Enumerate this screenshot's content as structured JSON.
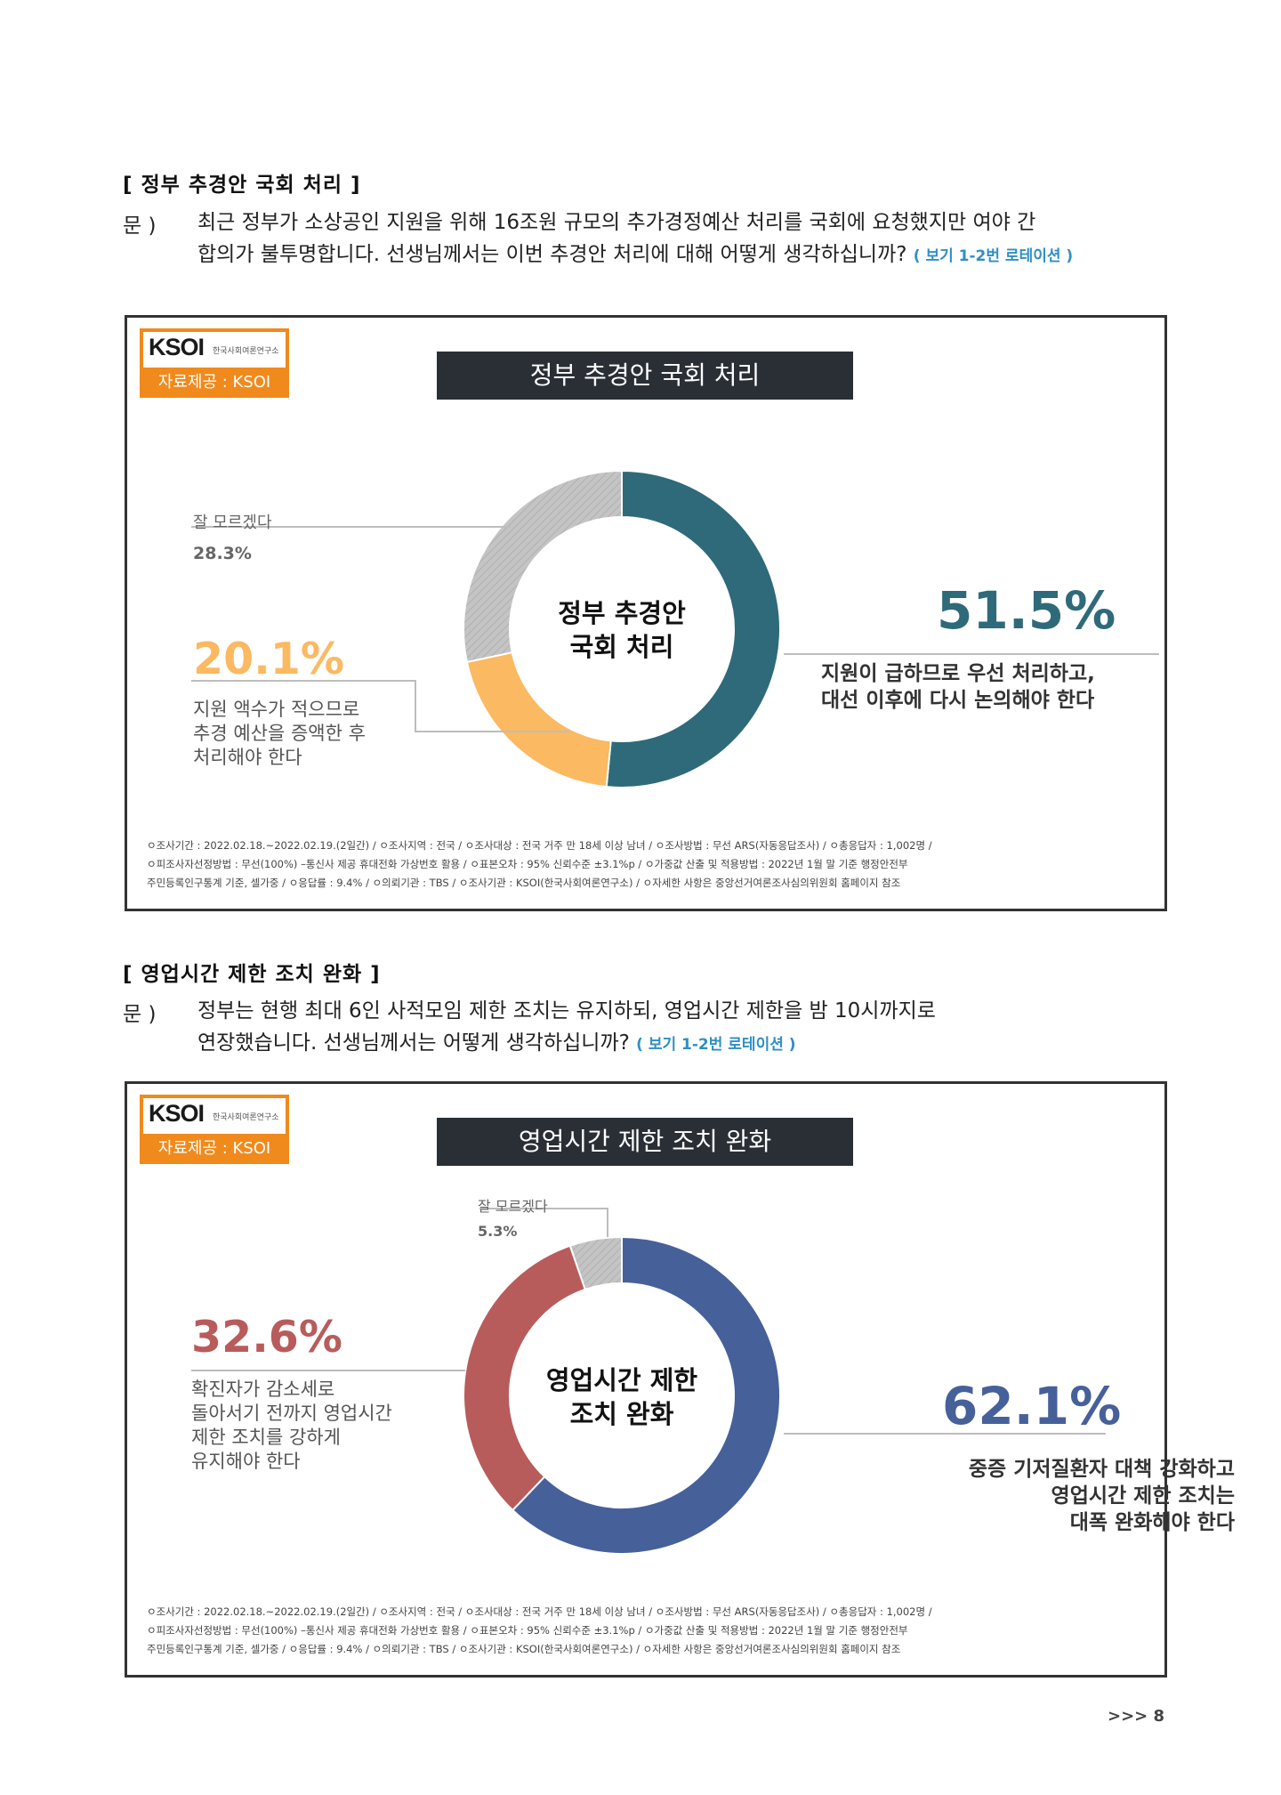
{
  "sections": [
    {
      "heading": "[ 정부 추경안 국회 처리 ]",
      "q_mark": "문 )",
      "question_line1": "최근 정부가 소상공인 지원을 위해 16조원 규모의 추가경정예산 처리를 국회에 요청했지만 여야 간",
      "question_line2": "합의가 불투명합니다. 선생님께서는 이번 추경안 처리에 대해 어떻게 생각하십니까?",
      "rotation_note": "( 보기 1-2번 로테이션 )"
    },
    {
      "heading": "[ 영업시간 제한 조치 완화 ]",
      "q_mark": "문 )",
      "question_line1": "정부는 현행 최대 6인 사적모임 제한 조치는 유지하되, 영업시간 제한을 밤 10시까지로",
      "question_line2": "연장했습니다. 선생님께서는 어떻게 생각하십니까?",
      "rotation_note": "( 보기 1-2번 로테이션 )"
    }
  ],
  "logo": {
    "mark": "KSOI",
    "sub": "한국사회여론연구소",
    "provider": "자료제공 : KSOI"
  },
  "chart_data": [
    {
      "type": "pie",
      "title": "정부 추경안 국회 처리",
      "center_label_line1": "정부 추경안",
      "center_label_line2": "국회 처리",
      "slices": [
        {
          "label_lines": [
            "지원이 급하므로 우선 처리하고,",
            "대선 이후에 다시 논의해야 한다"
          ],
          "value": 51.5,
          "display": "51.5%",
          "color": "#2e6a7a"
        },
        {
          "label_lines": [
            "지원 액수가 적으므로",
            "추경 예산을 증액한 후",
            "처리해야 한다"
          ],
          "value": 20.1,
          "display": "20.1%",
          "color": "#fbb962"
        },
        {
          "label_lines": [
            "잘 모르겠다"
          ],
          "value": 28.3,
          "display": "28.3%",
          "color": "#c2c2c2"
        }
      ]
    },
    {
      "type": "pie",
      "title": "영업시간 제한 조치 완화",
      "center_label_line1": "영업시간 제한",
      "center_label_line2": "조치 완화",
      "slices": [
        {
          "label_lines": [
            "중증 기저질환자 대책 강화하고",
            "영업시간 제한 조치는",
            "대폭 완화해야 한다"
          ],
          "value": 62.1,
          "display": "62.1%",
          "color": "#46609a"
        },
        {
          "label_lines": [
            "확진자가 감소세로",
            "돌아서기 전까지 영업시간",
            "제한 조치를 강하게",
            "유지해야 한다"
          ],
          "value": 32.6,
          "display": "32.6%",
          "color": "#b85c5b"
        },
        {
          "label_lines": [
            "잘 모르겠다"
          ],
          "value": 5.3,
          "display": "5.3%",
          "color": "#c2c2c2"
        }
      ]
    }
  ],
  "footnote": {
    "line1": "ㅇ조사기간 : 2022.02.18.~2022.02.19.(2일간) / ㅇ조사지역 : 전국 / ㅇ조사대상 : 전국 거주 만 18세 이상 남녀 / ㅇ조사방법 : 무선 ARS(자동응답조사) / ㅇ총응답자 : 1,002명 /",
    "line2": "ㅇ피조사자선정방법 : 무선(100%) –통신사 제공 휴대전화 가상번호 활용 / ㅇ표본오차 : 95% 신뢰수준 ±3.1%p / ㅇ가중값 산출 및 적용방법 : 2022년 1월 말 기준 행정안전부",
    "line3": "주민등록인구통계 기준, 셀가중 / ㅇ응답률 : 9.4% / ㅇ의뢰기관 : TBS / ㅇ조사기관 : KSOI(한국사회여론연구소) / ㅇ자세한 사항은 중앙선거여론조사심의위원회 홈페이지 참조"
  },
  "page_number": ">>> 8",
  "colors": {
    "accent_orange": "#f08a1c",
    "rotation_blue": "#2f8fc4",
    "title_bg": "#2a2f36"
  }
}
